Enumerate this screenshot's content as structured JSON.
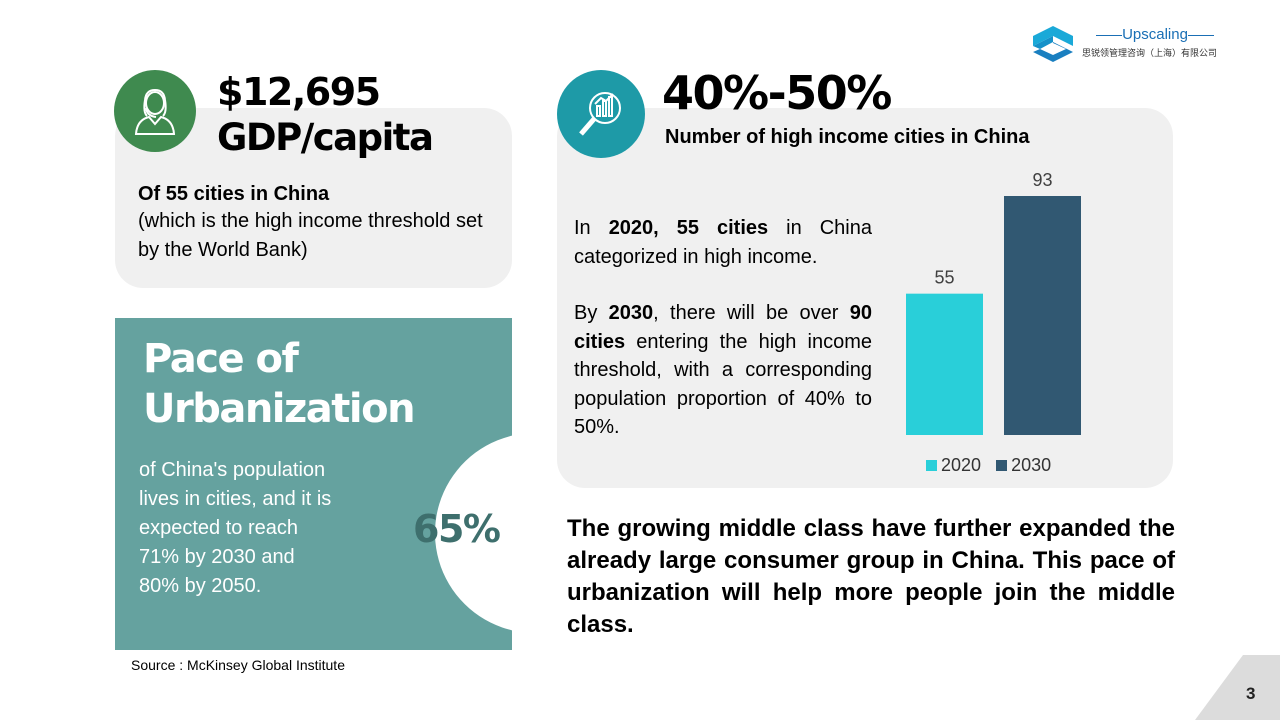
{
  "logo": {
    "name": "Upscaling",
    "subtitle": "思锐领管理咨询（上海）有限公司"
  },
  "gdp": {
    "value": "$12,695",
    "unit": "GDP/capita",
    "line1": "Of 55 cities in China",
    "line2": "(which is the high income threshold set by the World Bank)",
    "icon": "person-headset-icon"
  },
  "urbanization": {
    "title_line1": "Pace of",
    "title_line2": "Urbanization",
    "percent": "65%",
    "percent_value": 65,
    "description": "of China's population lives in cities, and it is expected to reach 71% by 2030 and 80% by 2050.",
    "bg_color": "#65a29f"
  },
  "source": "Source : McKinsey Global Institute",
  "high_income": {
    "value": "40%-50%",
    "subtitle": "Number of high income cities in China",
    "icon": "magnifier-chart-icon",
    "p1": {
      "a": "In ",
      "b": "2020, 55 cities",
      "c": " in China categorized in high income."
    },
    "p2": {
      "a": "By ",
      "b": "2030",
      "c": ", there will be over ",
      "d": "90 cities",
      "e": " entering the high income threshold, with a corresponding population proportion of 40% to 50%."
    }
  },
  "chart_data": {
    "type": "bar",
    "categories": [
      "2020",
      "2030"
    ],
    "values": [
      55,
      93
    ],
    "data_labels": [
      "55",
      "93"
    ],
    "colors": [
      "#29cfd9",
      "#315872"
    ],
    "legend": [
      "2020",
      "2030"
    ],
    "legend_position": "bottom",
    "ylim": [
      0,
      93
    ],
    "grid": false
  },
  "conclusion": "The growing middle class have further expanded the already large consumer group in China. This pace of urbanization will help more people join the middle class.",
  "page_number": "3"
}
